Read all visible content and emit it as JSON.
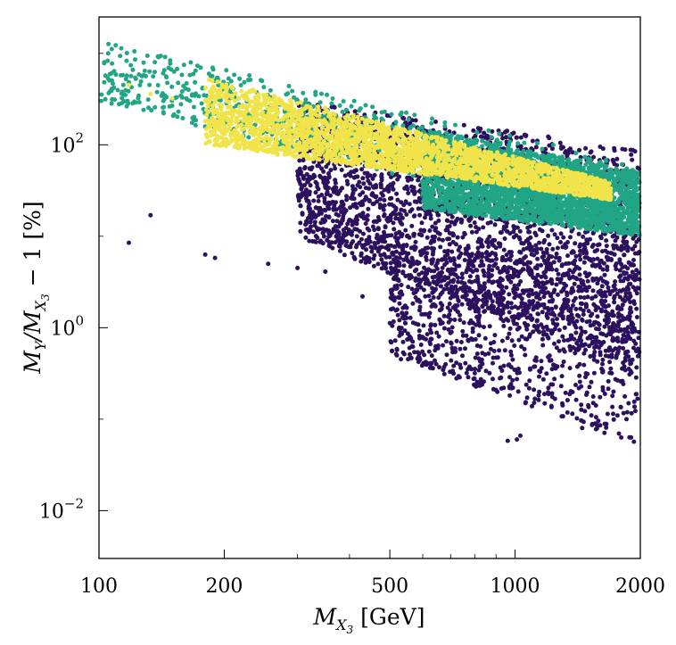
{
  "chart_data": {
    "type": "scatter",
    "x_scale": "log",
    "y_scale": "log",
    "xlim": [
      100,
      2000
    ],
    "ylim": [
      0.003,
      2500
    ],
    "xlabel": "M_{X_3} [GeV]",
    "ylabel": "M_Y/M_{X_3} − 1 [%]",
    "x_tick_labels": [
      "100",
      "200",
      "500",
      "1000",
      "2000"
    ],
    "x_ticks": [
      100,
      200,
      500,
      1000,
      2000
    ],
    "y_ticks": [
      {
        "value": 100,
        "base": "10",
        "exp": "2"
      },
      {
        "value": 1,
        "base": "10",
        "exp": "0"
      },
      {
        "value": 0.01,
        "base": "10",
        "exp": "−2"
      }
    ],
    "grid": false,
    "legend": "none",
    "series": [
      {
        "color": "#2c115f",
        "regions": [
          {
            "x": [
              300,
              2000
            ],
            "y_upper_at_xmin": 300,
            "y_upper_at_xmax": 90,
            "y_lower_at_xmin": 10,
            "y_lower_at_xmax": 0.3,
            "density": "high"
          },
          {
            "x": [
              500,
              2000
            ],
            "y_upper_at_xmin": 5,
            "y_upper_at_xmax": 10,
            "y_lower_at_xmin": 0.5,
            "y_lower_at_xmax": 0.05,
            "density": "medium"
          }
        ],
        "points": [
          [
            118,
            8.5
          ],
          [
            133,
            17
          ],
          [
            180,
            6.3
          ],
          [
            190,
            5.8
          ],
          [
            255,
            5.0
          ],
          [
            300,
            4.5
          ],
          [
            350,
            4.1
          ],
          [
            430,
            2.2
          ],
          [
            960,
            0.058
          ],
          [
            1010,
            0.06
          ],
          [
            1030,
            0.066
          ],
          [
            1900,
            0.063
          ],
          [
            1450,
            0.08
          ]
        ]
      },
      {
        "color": "#21a585",
        "regions": [
          {
            "x": [
              100,
              2000
            ],
            "y_upper_at_xmin": 1400,
            "y_upper_at_xmax": 60,
            "y_lower_at_xmin": 300,
            "y_lower_at_xmax": 10,
            "density": "medium"
          },
          {
            "x": [
              600,
              2000
            ],
            "y_upper_at_xmin": 150,
            "y_upper_at_xmax": 50,
            "y_lower_at_xmin": 20,
            "y_lower_at_xmax": 10,
            "density": "high"
          }
        ],
        "points": []
      },
      {
        "color": "#f0e44a",
        "regions": [
          {
            "x": [
              180,
              1700
            ],
            "y_upper_at_xmin": 550,
            "y_upper_at_xmax": 40,
            "y_lower_at_xmin": 100,
            "y_lower_at_xmax": 25,
            "density": "high"
          }
        ],
        "points": [
          [
            118,
            450
          ],
          [
            133,
            360
          ],
          [
            150,
            320
          ]
        ]
      }
    ]
  }
}
